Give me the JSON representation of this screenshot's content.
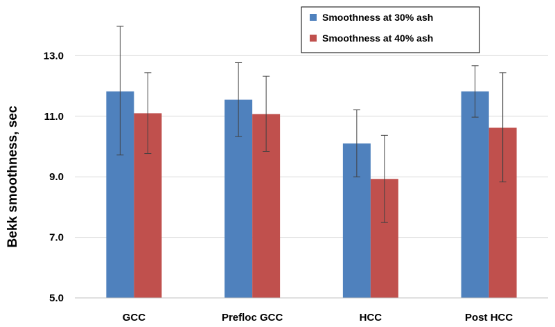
{
  "chart_data": {
    "type": "bar",
    "categories": [
      "GCC",
      "Prefloc GCC",
      "HCC",
      "Post HCC"
    ],
    "series": [
      {
        "name": "Smoothness at 30% ash",
        "color": "#4f81bd",
        "values": [
          11.82,
          11.55,
          10.1,
          11.82
        ],
        "error_low": [
          9.72,
          10.33,
          9.0,
          10.97
        ],
        "error_high": [
          13.97,
          12.77,
          11.21,
          12.67
        ]
      },
      {
        "name": "Smoothness at 40% ash",
        "color": "#c0504d",
        "values": [
          11.1,
          11.07,
          8.93,
          10.62
        ],
        "error_low": [
          9.77,
          9.84,
          7.49,
          8.83
        ],
        "error_high": [
          12.44,
          12.32,
          10.37,
          12.44
        ]
      }
    ],
    "title": "",
    "xlabel": "",
    "ylabel": "Bekk smoothness, sec",
    "ylim": [
      5.0,
      14.0
    ],
    "yticks": [
      "5.0",
      "7.0",
      "9.0",
      "11.0",
      "13.0"
    ],
    "ytick_values": [
      5,
      7,
      9,
      11,
      13
    ],
    "grid": true,
    "legend_position": "top-right"
  }
}
